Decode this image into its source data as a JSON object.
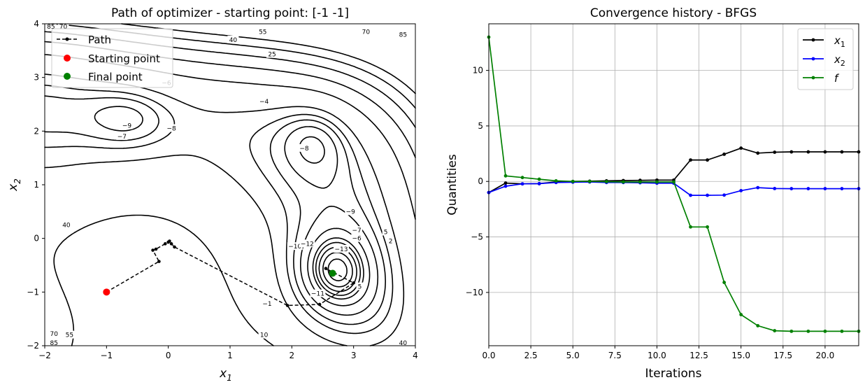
{
  "chart_data": [
    {
      "type": "contour",
      "title": "Path of optimizer - starting point: [-1 -1]",
      "xlabel": "x1",
      "ylabel": "x2",
      "xlim": [
        -2,
        4
      ],
      "ylim": [
        -2,
        4
      ],
      "xticks": [
        "−2",
        "−1",
        "0",
        "1",
        "2",
        "3",
        "4"
      ],
      "yticks": [
        "−2",
        "−1",
        "0",
        "1",
        "2",
        "3",
        "4"
      ],
      "contour_levels": [
        -13,
        -12,
        -11,
        -10,
        -9,
        -8,
        -7,
        -6,
        -4,
        -1,
        2,
        5,
        10,
        25,
        40,
        55,
        70,
        85
      ],
      "contour_labels": [
        {
          "text": "55",
          "x": 1.53,
          "y": 3.85
        },
        {
          "text": "40",
          "x": 1.05,
          "y": 3.7
        },
        {
          "text": "25",
          "x": 1.68,
          "y": 3.43
        },
        {
          "text": "70",
          "x": 3.2,
          "y": 3.85
        },
        {
          "text": "85",
          "x": 3.8,
          "y": 3.8
        },
        {
          "text": "85",
          "x": -1.9,
          "y": 3.95
        },
        {
          "text": "70",
          "x": -1.7,
          "y": 3.95
        },
        {
          "text": "−6",
          "x": -0.03,
          "y": 2.9
        },
        {
          "text": "−4",
          "x": 1.55,
          "y": 2.55
        },
        {
          "text": "−9",
          "x": -0.67,
          "y": 2.1
        },
        {
          "text": "−8",
          "x": 0.05,
          "y": 2.05
        },
        {
          "text": "−7",
          "x": -0.75,
          "y": 1.9
        },
        {
          "text": "−8",
          "x": 2.2,
          "y": 1.68
        },
        {
          "text": "−9",
          "x": 2.95,
          "y": 0.5
        },
        {
          "text": "−7",
          "x": 3.05,
          "y": 0.15
        },
        {
          "text": "−6",
          "x": 3.05,
          "y": 0
        },
        {
          "text": "5",
          "x": 3.52,
          "y": 0.12
        },
        {
          "text": "2",
          "x": 3.6,
          "y": -0.05
        },
        {
          "text": "40",
          "x": -1.65,
          "y": 0.25
        },
        {
          "text": "−10",
          "x": 2.05,
          "y": -0.15
        },
        {
          "text": "−12",
          "x": 2.25,
          "y": -0.1
        },
        {
          "text": "−13",
          "x": 2.8,
          "y": -0.2
        },
        {
          "text": "−11",
          "x": 2.42,
          "y": -1.03
        },
        {
          "text": "−1",
          "x": 1.6,
          "y": -1.22
        },
        {
          "text": "5",
          "x": 3.1,
          "y": -0.9
        },
        {
          "text": "10",
          "x": 1.55,
          "y": -1.8
        },
        {
          "text": "55",
          "x": -1.6,
          "y": -1.8
        },
        {
          "text": "70",
          "x": -1.85,
          "y": -1.78
        },
        {
          "text": "85",
          "x": -1.85,
          "y": -1.95
        },
        {
          "text": "40",
          "x": 3.8,
          "y": -1.95
        }
      ],
      "path": {
        "x": [
          -1.0,
          -0.15,
          -0.25,
          -0.2,
          -0.05,
          0.0,
          0.02,
          0.05,
          0.1,
          1.93,
          2.45,
          3.0,
          2.55,
          2.63,
          2.66
        ],
        "y": [
          -1.0,
          -0.43,
          -0.22,
          -0.2,
          -0.1,
          -0.07,
          -0.05,
          -0.1,
          -0.16,
          -1.25,
          -1.23,
          -0.83,
          -0.56,
          -0.64,
          -0.65
        ]
      },
      "start_point": {
        "x": -1,
        "y": -1
      },
      "final_point": {
        "x": 2.66,
        "y": -0.65
      },
      "legend": [
        {
          "label": "Path",
          "color": "#000000",
          "style": "dashed-line-dot"
        },
        {
          "label": "Starting point",
          "color": "#ff0000",
          "style": "point"
        },
        {
          "label": "Final point",
          "color": "#008000",
          "style": "point"
        }
      ],
      "legend_position": "top-left",
      "grid": false
    },
    {
      "type": "line",
      "title": "Convergence history - BFGS",
      "xlabel": "Iterations",
      "ylabel": "Quantities",
      "xlim": [
        0,
        22
      ],
      "ylim": [
        -14.8,
        14.2
      ],
      "xticks": [
        0,
        2.5,
        5,
        7.5,
        10,
        12.5,
        15,
        17.5,
        20
      ],
      "xtick_labels": [
        "0.0",
        "2.5",
        "5.0",
        "7.5",
        "10.0",
        "12.5",
        "15.0",
        "17.5",
        "20.0"
      ],
      "yticks": [
        -10,
        -5,
        0,
        5,
        10
      ],
      "ytick_labels": [
        "−10",
        "−5",
        "0",
        "5",
        "10"
      ],
      "x": [
        0,
        1,
        2,
        3,
        4,
        5,
        6,
        7,
        8,
        9,
        10,
        11,
        12,
        13,
        14,
        15,
        16,
        17,
        18,
        19,
        20,
        21,
        22
      ],
      "series": [
        {
          "name": "x1",
          "color": "#000000",
          "values": [
            -1.0,
            -0.15,
            -0.22,
            -0.2,
            -0.05,
            0.0,
            0.02,
            0.05,
            0.08,
            0.1,
            0.12,
            0.12,
            1.93,
            1.93,
            2.45,
            3.0,
            2.55,
            2.63,
            2.66,
            2.66,
            2.66,
            2.66,
            2.66
          ]
        },
        {
          "name": "x2",
          "color": "#0000ff",
          "values": [
            -1.0,
            -0.43,
            -0.22,
            -0.2,
            -0.1,
            -0.07,
            -0.05,
            -0.1,
            -0.1,
            -0.12,
            -0.16,
            -0.16,
            -1.25,
            -1.25,
            -1.23,
            -0.83,
            -0.56,
            -0.64,
            -0.65,
            -0.65,
            -0.65,
            -0.65,
            -0.65
          ]
        },
        {
          "name": "f",
          "color": "#008000",
          "values": [
            13.0,
            0.5,
            0.35,
            0.2,
            0.05,
            0.0,
            0.0,
            -0.02,
            -0.05,
            -0.05,
            -0.05,
            -0.05,
            -4.1,
            -4.1,
            -9.1,
            -12.0,
            -13.0,
            -13.45,
            -13.5,
            -13.5,
            -13.5,
            -13.5,
            -13.5
          ]
        }
      ],
      "legend": [
        {
          "label": "x",
          "sub": "1",
          "color": "#000000"
        },
        {
          "label": "x",
          "sub": "2",
          "color": "#0000ff"
        },
        {
          "label": "f",
          "sub": "",
          "color": "#008000"
        }
      ],
      "legend_position": "top-right",
      "grid": true
    }
  ]
}
